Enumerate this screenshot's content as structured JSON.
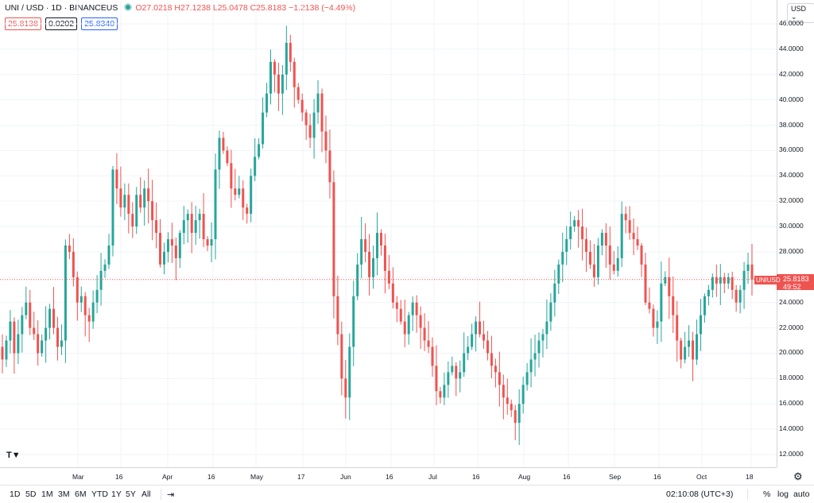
{
  "legend": {
    "symbol": "UNI / USD · 1D · BINANCEUS",
    "open": "O27.0218",
    "high": "H27.1238",
    "low": "L25.0478",
    "close": "C25.8183",
    "change": "−1.2138 (−4.49%)"
  },
  "badges": {
    "bid": "25.8138",
    "spread": "0.0202",
    "ask": "25.8340"
  },
  "currency": "USD",
  "price_labels": [
    "46.0000",
    "44.0000",
    "42.0000",
    "40.0000",
    "38.0000",
    "36.0000",
    "34.0000",
    "32.0000",
    "30.0000",
    "28.0000",
    "26.0000",
    "24.0000",
    "22.0000",
    "20.0000",
    "18.0000",
    "16.0000",
    "14.0000",
    "12.0000"
  ],
  "last_price": {
    "symbol": "UNIUSD",
    "price": "25.8183",
    "countdown": "49:52"
  },
  "time_labels": [
    "Mar",
    "16",
    "Apr",
    "16",
    "May",
    "17",
    "Jun",
    "16",
    "Jul",
    "16",
    "Aug",
    "16",
    "Sep",
    "16",
    "Oct",
    "18"
  ],
  "timeframes": [
    "1D",
    "5D",
    "1M",
    "3M",
    "6M",
    "YTD",
    "1Y",
    "5Y",
    "All"
  ],
  "bottom_right": {
    "clock": "02:10:08 (UTC+3)",
    "percent": "%",
    "log": "log",
    "auto": "auto"
  },
  "colors": {
    "up": "#26a69a",
    "down": "#ef5350",
    "grid": "#f0f3fa"
  },
  "chart_data": {
    "type": "candlestick",
    "symbol": "UNI / USD",
    "interval": "1D",
    "exchange": "BINANCEUS",
    "x_range": [
      "Feb",
      "Oct 18"
    ],
    "y_range": [
      12,
      46
    ],
    "close_path": [
      19.5,
      21.0,
      22.5,
      20.0,
      21.5,
      23.0,
      24.0,
      22.0,
      21.5,
      20.0,
      21.0,
      22.0,
      23.5,
      22.0,
      20.5,
      21.0,
      28.5,
      28.0,
      26.0,
      24.0,
      24.5,
      23.0,
      22.5,
      24.0,
      25.0,
      26.5,
      27.0,
      28.5,
      34.5,
      33.0,
      31.5,
      32.5,
      31.0,
      30.0,
      32.5,
      31.5,
      33.0,
      32.0,
      30.5,
      29.5,
      27.0,
      28.0,
      29.0,
      28.5,
      27.5,
      29.5,
      30.5,
      31.0,
      29.5,
      30.5,
      31.0,
      29.0,
      28.5,
      29.0,
      34.5,
      37.0,
      36.0,
      35.0,
      33.0,
      32.5,
      33.0,
      31.5,
      31.0,
      34.0,
      35.5,
      36.5,
      39.0,
      40.5,
      43.0,
      42.0,
      40.5,
      42.0,
      44.5,
      43.0,
      41.0,
      40.0,
      39.0,
      38.0,
      37.0,
      39.0,
      40.5,
      37.5,
      36.0,
      33.5,
      24.5,
      21.5,
      18.0,
      16.5,
      20.5,
      24.5,
      27.0,
      29.0,
      28.0,
      26.0,
      27.5,
      29.5,
      28.5,
      26.5,
      25.5,
      24.0,
      23.5,
      22.5,
      21.5,
      23.0,
      24.0,
      23.0,
      22.0,
      21.0,
      20.5,
      19.0,
      17.0,
      16.5,
      17.5,
      18.5,
      19.0,
      18.0,
      18.5,
      20.0,
      20.5,
      21.5,
      22.5,
      21.5,
      21.0,
      20.0,
      19.0,
      18.5,
      17.5,
      16.5,
      16.0,
      15.5,
      14.5,
      16.0,
      17.5,
      18.5,
      19.5,
      20.0,
      21.0,
      21.5,
      22.5,
      24.0,
      25.5,
      27.0,
      28.0,
      29.0,
      30.0,
      30.5,
      30.0,
      29.0,
      28.0,
      27.0,
      26.0,
      28.5,
      29.5,
      28.5,
      27.0,
      26.5,
      27.5,
      31.0,
      30.5,
      29.5,
      29.0,
      28.5,
      27.0,
      24.0,
      23.5,
      22.0,
      22.5,
      25.5,
      26.0,
      24.5,
      23.0,
      21.0,
      19.5,
      20.5,
      21.0,
      19.5,
      21.5,
      23.0,
      24.5,
      25.0,
      26.0,
      25.5,
      26.0,
      25.5,
      26.0,
      25.0,
      24.0,
      25.0,
      26.5,
      27.0,
      25.8183
    ]
  }
}
